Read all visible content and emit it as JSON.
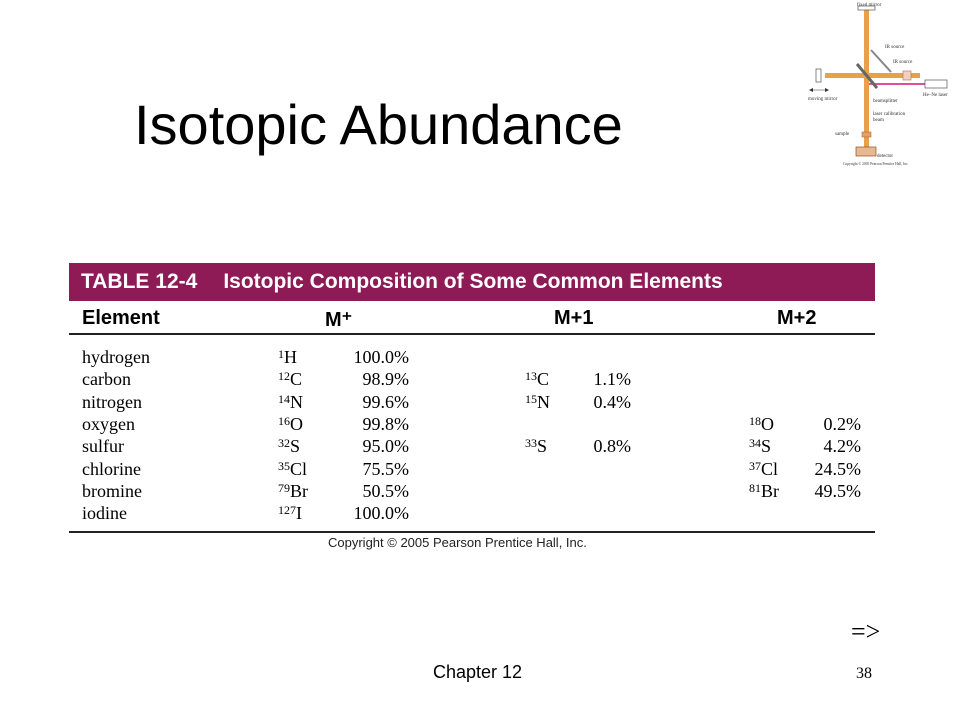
{
  "slide": {
    "title": "Isotopic Abundance",
    "chapter": "Chapter 12",
    "page_number": "38",
    "nav_arrow": "=>"
  },
  "diagram": {
    "labels": {
      "fixed_mirror": "fixed mirror",
      "ir_source_1": "IR source",
      "ir_source_2": "IR source",
      "moving_mirror": "moving mirror",
      "beamsplitter": "beamsplitter",
      "laser": "He–Ne laser",
      "laser_calibration": "laser calibration",
      "beam": "beam",
      "sample": "sample",
      "detector": "detector",
      "copyright": "Copyright © 2005 Pearson Prentice Hall, Inc."
    }
  },
  "table": {
    "number": "TABLE 12-4",
    "caption": "Isotopic Composition of Some Common Elements",
    "headers": {
      "element": "Element",
      "m": "M⁺",
      "m1": "M+1",
      "m2": "M+2"
    },
    "rows": [
      {
        "element": "hydrogen",
        "m_mass": "1",
        "m_sym": "H",
        "m_pct": "100.0%",
        "m1_mass": "",
        "m1_sym": "",
        "m1_pct": "",
        "m2_mass": "",
        "m2_sym": "",
        "m2_pct": ""
      },
      {
        "element": "carbon",
        "m_mass": "12",
        "m_sym": "C",
        "m_pct": "98.9%",
        "m1_mass": "13",
        "m1_sym": "C",
        "m1_pct": "1.1%",
        "m2_mass": "",
        "m2_sym": "",
        "m2_pct": ""
      },
      {
        "element": "nitrogen",
        "m_mass": "14",
        "m_sym": "N",
        "m_pct": "99.6%",
        "m1_mass": "15",
        "m1_sym": "N",
        "m1_pct": "0.4%",
        "m2_mass": "",
        "m2_sym": "",
        "m2_pct": ""
      },
      {
        "element": "oxygen",
        "m_mass": "16",
        "m_sym": "O",
        "m_pct": "99.8%",
        "m1_mass": "",
        "m1_sym": "",
        "m1_pct": "",
        "m2_mass": "18",
        "m2_sym": "O",
        "m2_pct": "0.2%"
      },
      {
        "element": "sulfur",
        "m_mass": "32",
        "m_sym": "S",
        "m_pct": "95.0%",
        "m1_mass": "33",
        "m1_sym": "S",
        "m1_pct": "0.8%",
        "m2_mass": "34",
        "m2_sym": "S",
        "m2_pct": "4.2%"
      },
      {
        "element": "chlorine",
        "m_mass": "35",
        "m_sym": "Cl",
        "m_pct": "75.5%",
        "m1_mass": "",
        "m1_sym": "",
        "m1_pct": "",
        "m2_mass": "37",
        "m2_sym": "Cl",
        "m2_pct": "24.5%"
      },
      {
        "element": "bromine",
        "m_mass": "79",
        "m_sym": "Br",
        "m_pct": "50.5%",
        "m1_mass": "",
        "m1_sym": "",
        "m1_pct": "",
        "m2_mass": "81",
        "m2_sym": "Br",
        "m2_pct": "49.5%"
      },
      {
        "element": "iodine",
        "m_mass": "127",
        "m_sym": "I",
        "m_pct": "100.0%",
        "m1_mass": "",
        "m1_sym": "",
        "m1_pct": "",
        "m2_mass": "",
        "m2_sym": "",
        "m2_pct": ""
      }
    ],
    "copyright": "Copyright © 2005 Pearson Prentice Hall, Inc."
  },
  "colors": {
    "banner": "#8e1a56",
    "beam": "#e8a04a",
    "laser": "#d4147a"
  }
}
